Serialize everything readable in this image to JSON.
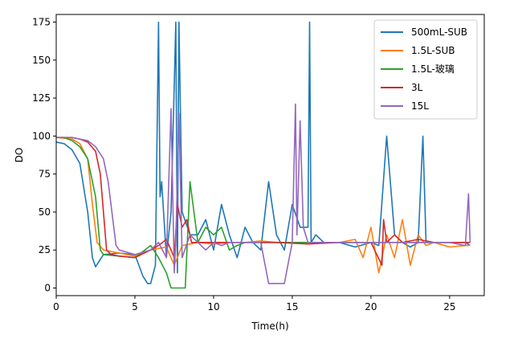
{
  "chart_data": {
    "type": "line",
    "xlabel": "Time(h)",
    "ylabel": "DO",
    "xlim": [
      0,
      27.2
    ],
    "ylim": [
      -5,
      180
    ],
    "xticks": [
      0,
      5,
      10,
      15,
      20,
      25
    ],
    "yticks": [
      0,
      25,
      50,
      75,
      100,
      125,
      150,
      175
    ],
    "xtick_labels": [
      "0",
      "5",
      "10",
      "15",
      "20",
      "25"
    ],
    "ytick_labels": [
      "0",
      "25",
      "50",
      "75",
      "100",
      "125",
      "150",
      "175"
    ],
    "grid": false,
    "legend_position": "top-right",
    "series": [
      {
        "name": "500mL-SUB",
        "color": "#1f77b4",
        "x": [
          0,
          0.5,
          1,
          1.5,
          2,
          2.3,
          2.5,
          3,
          4,
          5,
          5.5,
          5.8,
          6,
          6.3,
          6.5,
          6.6,
          6.7,
          7,
          7.3,
          7.6,
          7.7,
          7.8,
          8,
          8.5,
          9,
          9.5,
          10,
          10.5,
          11,
          11.5,
          12,
          12.5,
          13,
          13.5,
          14,
          14.5,
          15,
          15.5,
          16,
          16.1,
          16.2,
          16.5,
          17,
          18,
          19,
          20,
          20.5,
          21,
          21.5,
          22,
          22.5,
          23,
          23.3,
          23.5,
          24,
          24.5,
          25,
          25.5,
          26,
          26.3
        ],
        "y": [
          96,
          95,
          91,
          82,
          50,
          20,
          14,
          22,
          23,
          22,
          8,
          3,
          3,
          15,
          175,
          60,
          70,
          20,
          50,
          175,
          10,
          175,
          50,
          35,
          35,
          45,
          25,
          55,
          35,
          20,
          40,
          30,
          25,
          70,
          35,
          25,
          55,
          40,
          40,
          175,
          30,
          35,
          30,
          30,
          27,
          30,
          28,
          100,
          35,
          30,
          27,
          30,
          100,
          30,
          30,
          30,
          30,
          30,
          30,
          28
        ]
      },
      {
        "name": "1.5L-SUB",
        "color": "#ff7f0e",
        "x": [
          0,
          1,
          1.5,
          2,
          2.3,
          2.6,
          3,
          4,
          5,
          6,
          7,
          7.5,
          8,
          9,
          10,
          11,
          12,
          13,
          14,
          15,
          16,
          17,
          18,
          19,
          19.5,
          20,
          20.5,
          21,
          21.5,
          22,
          22.5,
          23,
          23.5,
          24,
          25,
          26,
          26.3
        ],
        "y": [
          99,
          98,
          95,
          85,
          55,
          30,
          25,
          23,
          21,
          25,
          27,
          15,
          28,
          30,
          29,
          30,
          30,
          31,
          30,
          30,
          29,
          30,
          30,
          32,
          20,
          40,
          10,
          35,
          20,
          45,
          15,
          35,
          28,
          30,
          27,
          28,
          28
        ]
      },
      {
        "name": "1.5L-玻璃",
        "color": "#2ca02c",
        "x": [
          0,
          0.5,
          1,
          1.5,
          2,
          2.5,
          2.8,
          3,
          4,
          5,
          6,
          6.5,
          7,
          7.3,
          7.5,
          8,
          8.2,
          8.5,
          9,
          9.5,
          10,
          10.5,
          11,
          11.5,
          12,
          13,
          14,
          15,
          16,
          17,
          18,
          20,
          22,
          24,
          26,
          26.3
        ],
        "y": [
          99,
          99,
          97,
          93,
          85,
          60,
          25,
          22,
          21,
          20,
          28,
          20,
          10,
          0,
          0,
          0,
          0,
          70,
          30,
          40,
          35,
          40,
          25,
          28,
          30,
          30,
          30,
          30,
          30,
          30,
          30,
          30,
          30,
          30,
          30,
          30
        ]
      },
      {
        "name": "3L",
        "color": "#d62728",
        "x": [
          0,
          0.5,
          1,
          1.5,
          2,
          2.5,
          2.8,
          3,
          3.2,
          3.5,
          4,
          5,
          6,
          6.5,
          7,
          7.5,
          7.7,
          8,
          8.3,
          8.6,
          9,
          10,
          12,
          14,
          16,
          18,
          20,
          20.7,
          20.8,
          21,
          21.5,
          22,
          23,
          24,
          25,
          26,
          26.3
        ],
        "y": [
          99,
          99,
          99,
          98,
          96,
          90,
          75,
          50,
          25,
          22,
          21,
          20,
          25,
          28,
          32,
          20,
          55,
          40,
          45,
          30,
          30,
          30,
          30,
          30,
          29,
          30,
          30,
          15,
          45,
          30,
          35,
          30,
          32,
          30,
          30,
          30,
          30
        ]
      },
      {
        "name": "15L",
        "color": "#9467bd",
        "x": [
          0,
          1,
          2,
          2.5,
          3,
          3.3,
          3.6,
          3.8,
          4,
          5,
          6,
          6.5,
          7,
          7.3,
          7.5,
          7.6,
          7.8,
          8,
          8.5,
          9,
          9.5,
          10,
          10.5,
          11,
          12,
          13,
          13.5,
          14,
          14.5,
          15,
          15.2,
          15.3,
          15.5,
          15.7,
          16,
          16.5,
          17,
          18,
          20,
          22,
          24,
          25,
          26,
          26.2,
          26.3
        ],
        "y": [
          99,
          99,
          97,
          93,
          85,
          70,
          45,
          28,
          25,
          22,
          25,
          30,
          20,
          118,
          10,
          30,
          115,
          20,
          35,
          30,
          25,
          30,
          28,
          30,
          30,
          30,
          3,
          3,
          3,
          30,
          121,
          35,
          110,
          40,
          30,
          30,
          30,
          30,
          30,
          30,
          30,
          30,
          28,
          62,
          30
        ]
      }
    ]
  }
}
